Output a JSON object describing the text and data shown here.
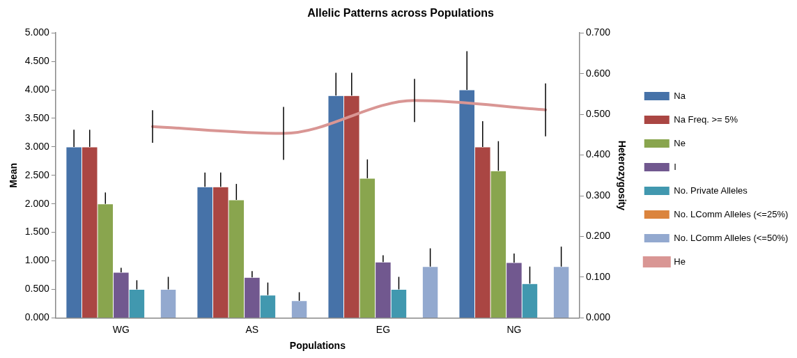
{
  "chart_data": {
    "type": "bar",
    "title": "Allelic Patterns across Populations",
    "xlabel": "Populations",
    "ylabel": "Mean",
    "y2label": "Heterozygosity",
    "categories": [
      "WG",
      "AS",
      "EG",
      "NG"
    ],
    "series": [
      {
        "name": "Na",
        "color": "#4672a8",
        "values": [
          3.0,
          2.3,
          3.9,
          4.0
        ],
        "errors": [
          [
            3.0,
            3.3
          ],
          [
            2.3,
            2.55
          ],
          [
            3.9,
            4.3
          ],
          [
            4.0,
            4.68
          ]
        ]
      },
      {
        "name": "Na Freq. >= 5%",
        "color": "#aa4643",
        "values": [
          3.0,
          2.3,
          3.9,
          3.0
        ],
        "errors": [
          [
            3.0,
            3.3
          ],
          [
            2.3,
            2.55
          ],
          [
            3.9,
            4.3
          ],
          [
            3.0,
            3.45
          ]
        ]
      },
      {
        "name": "Ne",
        "color": "#89a54e",
        "values": [
          2.0,
          2.07,
          2.45,
          2.58
        ],
        "errors": [
          [
            2.0,
            2.2
          ],
          [
            2.07,
            2.35
          ],
          [
            2.45,
            2.78
          ],
          [
            2.58,
            3.1
          ]
        ]
      },
      {
        "name": "I",
        "color": "#71588f",
        "values": [
          0.8,
          0.71,
          0.98,
          0.97
        ],
        "errors": [
          [
            0.8,
            0.88
          ],
          [
            0.71,
            0.82
          ],
          [
            0.98,
            1.1
          ],
          [
            0.97,
            1.13
          ]
        ]
      },
      {
        "name": "No. Private Alleles",
        "color": "#4198af",
        "values": [
          0.5,
          0.4,
          0.5,
          0.6
        ],
        "errors": [
          [
            0.5,
            0.66
          ],
          [
            0.4,
            0.62
          ],
          [
            0.5,
            0.72
          ],
          [
            0.6,
            0.9
          ]
        ]
      },
      {
        "name": "No. LComm Alleles (<=25%)",
        "color": "#db843d",
        "values": [
          0,
          0,
          0,
          0
        ]
      },
      {
        "name": "No. LComm Alleles (<=50%)",
        "color": "#93a9cf",
        "values": [
          0.5,
          0.3,
          0.9,
          0.9
        ],
        "errors": [
          [
            0.5,
            0.72
          ],
          [
            0.3,
            0.45
          ],
          [
            0.9,
            1.22
          ],
          [
            0.9,
            1.25
          ]
        ]
      },
      {
        "name": "He",
        "type": "line",
        "axis": "y2",
        "color": "#d99694",
        "values": [
          0.47,
          0.453,
          0.534,
          0.511
        ],
        "errors": [
          0.04,
          0.065,
          0.053,
          0.065
        ]
      }
    ],
    "ylim": [
      0,
      5
    ],
    "yticks": [
      {
        "value": 0,
        "label": "0.000"
      },
      {
        "value": 0.5,
        "label": "0.500"
      },
      {
        "value": 1,
        "label": "1.000"
      },
      {
        "value": 1.5,
        "label": "1.500"
      },
      {
        "value": 2,
        "label": "2.000"
      },
      {
        "value": 2.5,
        "label": "2.500"
      },
      {
        "value": 3,
        "label": "3.000"
      },
      {
        "value": 3.5,
        "label": "3.500"
      },
      {
        "value": 4,
        "label": "4.000"
      },
      {
        "value": 4.5,
        "label": "4.500"
      },
      {
        "value": 5,
        "label": "5.000"
      }
    ],
    "y2lim": [
      0,
      0.7
    ],
    "y2ticks": [
      {
        "value": 0,
        "label": "0.000"
      },
      {
        "value": 0.1,
        "label": "0.100"
      },
      {
        "value": 0.2,
        "label": "0.200"
      },
      {
        "value": 0.3,
        "label": "0.300"
      },
      {
        "value": 0.4,
        "label": "0.400"
      },
      {
        "value": 0.5,
        "label": "0.500"
      },
      {
        "value": 0.6,
        "label": "0.600"
      },
      {
        "value": 0.7,
        "label": "0.700"
      }
    ],
    "legend": "right",
    "grid": false,
    "marker": "none"
  }
}
